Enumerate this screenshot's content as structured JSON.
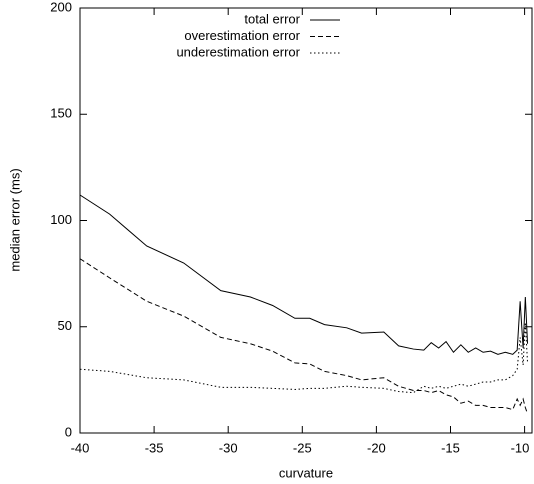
{
  "chart_data": {
    "type": "line",
    "x_label": "curvature",
    "y_label": "median error (ms)",
    "x": [
      -40,
      -38,
      -35.5,
      -33,
      -30.5,
      -28.5,
      -27,
      -25.5,
      -24.5,
      -23.5,
      -22,
      -21,
      -19.5,
      -18.5,
      -17.5,
      -16.8,
      -16.3,
      -15.8,
      -15.3,
      -14.8,
      -14.3,
      -13.8,
      -13.3,
      -12.8,
      -12.3,
      -11.8,
      -11.3,
      -10.8,
      -10.5,
      -10.3,
      -10.1,
      -9.95,
      -9.8
    ],
    "series": [
      {
        "name": "total error",
        "color": "#000000",
        "dash": "none",
        "values": [
          112,
          103,
          88,
          80,
          67,
          64,
          60,
          54,
          54,
          51,
          49.5,
          47,
          47.5,
          41,
          39.5,
          39,
          42.5,
          40,
          43,
          38,
          41.5,
          38,
          40,
          38,
          38.5,
          37,
          38,
          37,
          39,
          62,
          40,
          64,
          42
        ]
      },
      {
        "name": "overestimation error",
        "color": "#000000",
        "dash": "5,3",
        "values": [
          82,
          73,
          62,
          55,
          45,
          42,
          38.5,
          33,
          32.5,
          29,
          27,
          25,
          26,
          22,
          20,
          20,
          19,
          20,
          18,
          17,
          14,
          15,
          13,
          13,
          12,
          12,
          12,
          11,
          16,
          13,
          16,
          12,
          9
        ]
      },
      {
        "name": "underestimation error",
        "color": "#000000",
        "dash": "1.5,2.5",
        "values": [
          30,
          29,
          26,
          25,
          21.5,
          21.5,
          21,
          20.5,
          21,
          21,
          22,
          21.5,
          21,
          19.5,
          19,
          22,
          21,
          22,
          21,
          22,
          23,
          22,
          23,
          24,
          24,
          25,
          25,
          27,
          30,
          45,
          32,
          52,
          33
        ]
      }
    ],
    "xlim": [
      -40,
      -9.5
    ],
    "ylim": [
      0,
      200
    ],
    "xticks": [
      -40,
      -35,
      -30,
      -25,
      -20,
      -15,
      -10
    ],
    "yticks": [
      0,
      50,
      100,
      150,
      200
    ],
    "legend": "top-right"
  }
}
